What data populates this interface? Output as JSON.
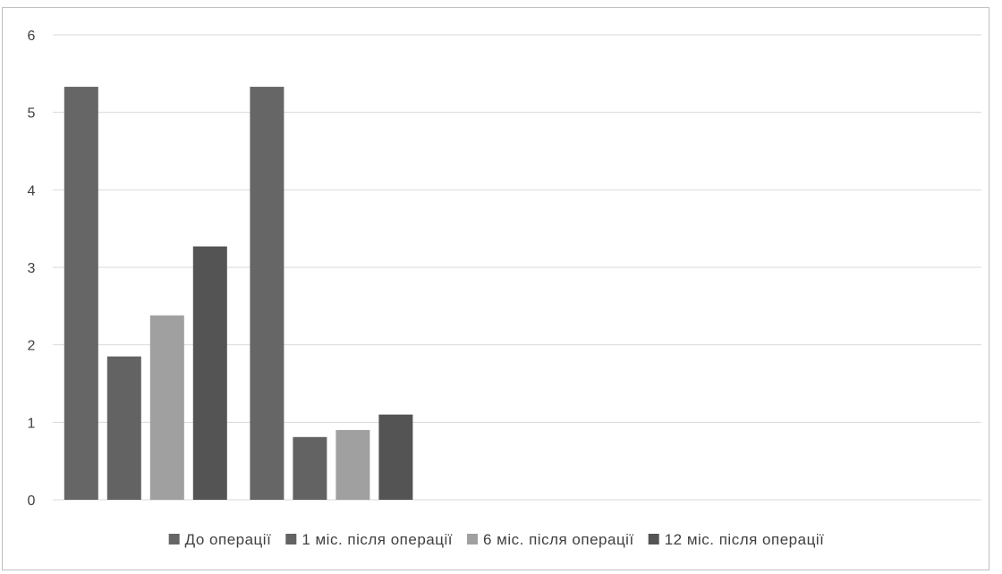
{
  "chart_data": {
    "type": "bar",
    "title": "",
    "xlabel": "",
    "ylabel": "",
    "ylim": [
      0,
      6
    ],
    "yticks": [
      0,
      1,
      2,
      3,
      4,
      5,
      6
    ],
    "grid": true,
    "legend_position": "bottom",
    "groups": [
      "",
      "",
      "",
      "",
      ""
    ],
    "series": [
      {
        "name": "До операції",
        "color": "#666666",
        "values": [
          5.33,
          5.33,
          null,
          null,
          null
        ]
      },
      {
        "name": "1 міс. після операції",
        "color": "#636363",
        "values": [
          1.85,
          0.81,
          null,
          null,
          null
        ]
      },
      {
        "name": "6 міс. після операції",
        "color": "#a0a0a0",
        "values": [
          2.38,
          0.9,
          null,
          null,
          null
        ]
      },
      {
        "name": "12 міс. після операції",
        "color": "#545454",
        "values": [
          3.27,
          1.1,
          null,
          null,
          null
        ]
      }
    ]
  }
}
